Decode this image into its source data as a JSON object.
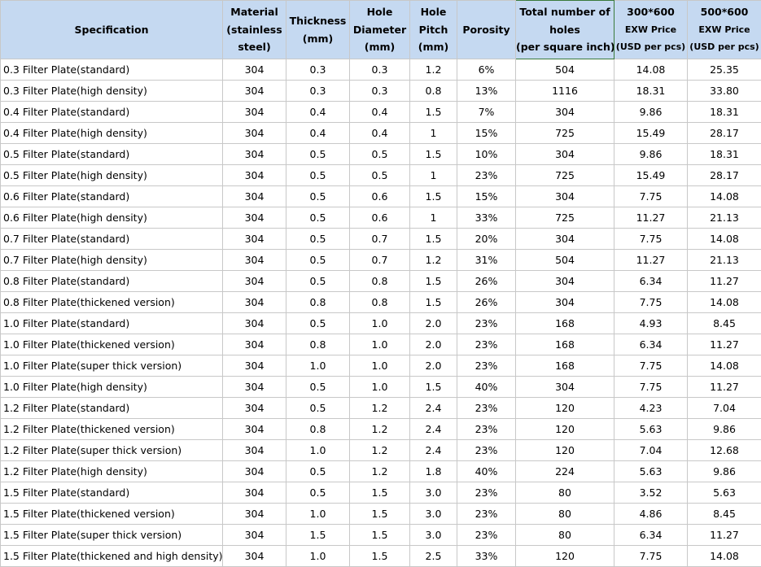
{
  "headers": {
    "specification": [
      "Specification"
    ],
    "material": [
      "Material",
      "(stainless",
      "steel)"
    ],
    "thickness": [
      "Thickness",
      "(mm)"
    ],
    "hole_diameter": [
      "Hole",
      "Diameter",
      "(mm)"
    ],
    "hole_pitch": [
      "Hole",
      "Pitch",
      "(mm)"
    ],
    "porosity": [
      "Porosity"
    ],
    "total_holes": [
      "Total number of",
      "holes",
      "(per square inch)"
    ],
    "price_300": [
      "300*600",
      "EXW Price",
      "(USD per pcs)"
    ],
    "price_500": [
      "500*600",
      "EXW Price",
      "(USD per pcs)"
    ]
  },
  "rows": [
    [
      "0.3 Filter Plate(standard)",
      "304",
      "0.3",
      "0.3",
      "1.2",
      "6%",
      "504",
      "14.08",
      "25.35"
    ],
    [
      "0.3 Filter Plate(high density)",
      "304",
      "0.3",
      "0.3",
      "0.8",
      "13%",
      "1116",
      "18.31",
      "33.80"
    ],
    [
      "0.4 Filter Plate(standard)",
      "304",
      "0.4",
      "0.4",
      "1.5",
      "7%",
      "304",
      "9.86",
      "18.31"
    ],
    [
      "0.4 Filter Plate(high density)",
      "304",
      "0.4",
      "0.4",
      "1",
      "15%",
      "725",
      "15.49",
      "28.17"
    ],
    [
      "0.5 Filter Plate(standard)",
      "304",
      "0.5",
      "0.5",
      "1.5",
      "10%",
      "304",
      "9.86",
      "18.31"
    ],
    [
      "0.5 Filter Plate(high density)",
      "304",
      "0.5",
      "0.5",
      "1",
      "23%",
      "725",
      "15.49",
      "28.17"
    ],
    [
      "0.6 Filter Plate(standard)",
      "304",
      "0.5",
      "0.6",
      "1.5",
      "15%",
      "304",
      "7.75",
      "14.08"
    ],
    [
      "0.6 Filter Plate(high density)",
      "304",
      "0.5",
      "0.6",
      "1",
      "33%",
      "725",
      "11.27",
      "21.13"
    ],
    [
      "0.7 Filter Plate(standard)",
      "304",
      "0.5",
      "0.7",
      "1.5",
      "20%",
      "304",
      "7.75",
      "14.08"
    ],
    [
      "0.7 Filter Plate(high density)",
      "304",
      "0.5",
      "0.7",
      "1.2",
      "31%",
      "504",
      "11.27",
      "21.13"
    ],
    [
      "0.8 Filter Plate(standard)",
      "304",
      "0.5",
      "0.8",
      "1.5",
      "26%",
      "304",
      "6.34",
      "11.27"
    ],
    [
      "0.8 Filter Plate(thickened version)",
      "304",
      "0.8",
      "0.8",
      "1.5",
      "26%",
      "304",
      "7.75",
      "14.08"
    ],
    [
      "1.0 Filter Plate(standard)",
      "304",
      "0.5",
      "1.0",
      "2.0",
      "23%",
      "168",
      "4.93",
      "8.45"
    ],
    [
      "1.0 Filter Plate(thickened version)",
      "304",
      "0.8",
      "1.0",
      "2.0",
      "23%",
      "168",
      "6.34",
      "11.27"
    ],
    [
      "1.0 Filter Plate(super thick version)",
      "304",
      "1.0",
      "1.0",
      "2.0",
      "23%",
      "168",
      "7.75",
      "14.08"
    ],
    [
      "1.0 Filter Plate(high density)",
      "304",
      "0.5",
      "1.0",
      "1.5",
      "40%",
      "304",
      "7.75",
      "11.27"
    ],
    [
      "1.2 Filter Plate(standard)",
      "304",
      "0.5",
      "1.2",
      "2.4",
      "23%",
      "120",
      "4.23",
      "7.04"
    ],
    [
      "1.2 Filter Plate(thickened version)",
      "304",
      "0.8",
      "1.2",
      "2.4",
      "23%",
      "120",
      "5.63",
      "9.86"
    ],
    [
      "1.2 Filter Plate(super thick version)",
      "304",
      "1.0",
      "1.2",
      "2.4",
      "23%",
      "120",
      "7.04",
      "12.68"
    ],
    [
      "1.2 Filter Plate(high density)",
      "304",
      "0.5",
      "1.2",
      "1.8",
      "40%",
      "224",
      "5.63",
      "9.86"
    ],
    [
      "1.5 Filter Plate(standard)",
      "304",
      "0.5",
      "1.5",
      "3.0",
      "23%",
      "80",
      "3.52",
      "5.63"
    ],
    [
      "1.5 Filter Plate(thickened version)",
      "304",
      "1.0",
      "1.5",
      "3.0",
      "23%",
      "80",
      "4.86",
      "8.45"
    ],
    [
      "1.5 Filter Plate(super thick version)",
      "304",
      "1.5",
      "1.5",
      "3.0",
      "23%",
      "80",
      "6.34",
      "11.27"
    ],
    [
      "1.5 Filter Plate(thickened and high density)",
      "304",
      "1.0",
      "1.5",
      "2.5",
      "33%",
      "120",
      "7.75",
      "14.08"
    ]
  ]
}
